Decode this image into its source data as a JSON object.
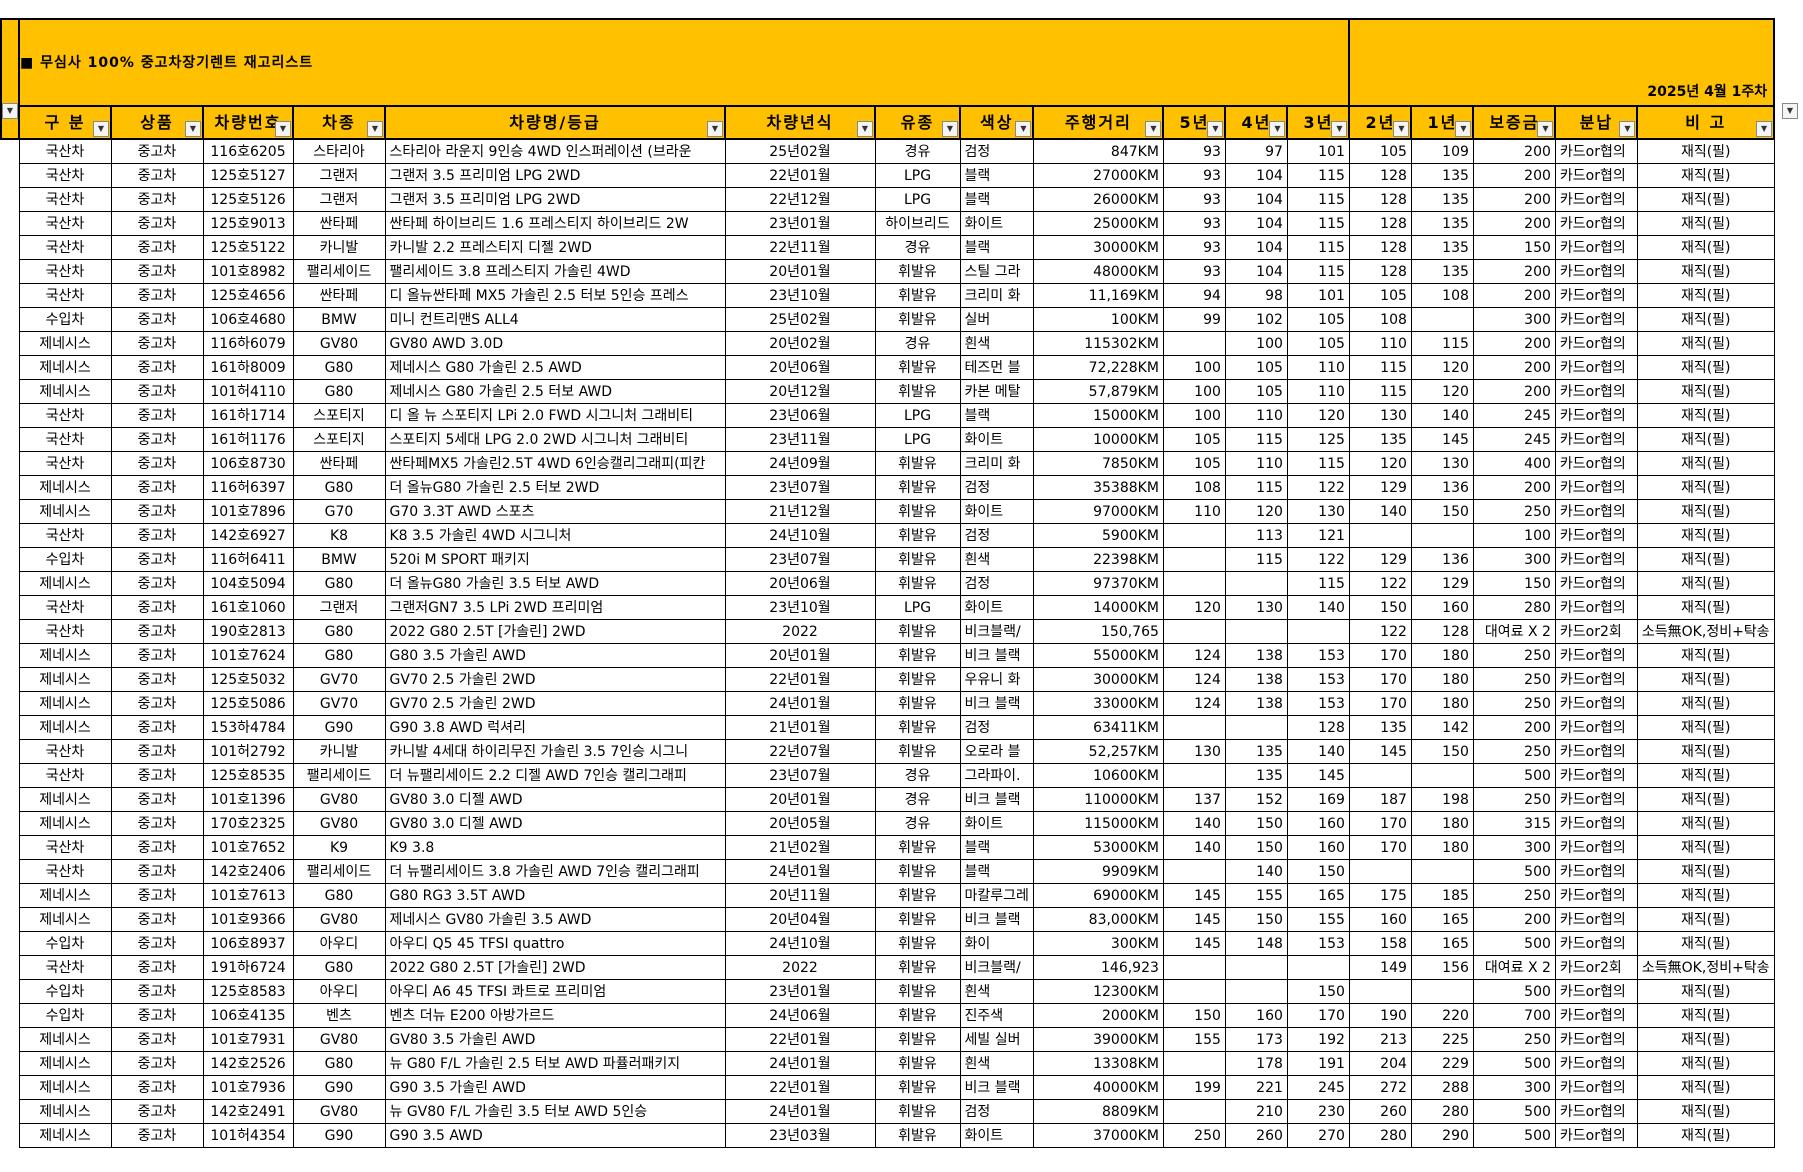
{
  "title": "■ 무심사 100% 중고차장기렌트 재고리스트",
  "date_label": "2025년 4월 1주차",
  "filter_icon": "dropdown-arrow",
  "columns": [
    "구 분",
    "상품",
    "차량번호",
    "차종",
    "차량명/등급",
    "차량년식",
    "유종",
    "색상",
    "주행거리",
    "5년",
    "4년",
    "3년",
    "2년",
    "1년",
    "보증금",
    "분납",
    "비 고"
  ],
  "rows": [
    [
      "국산차",
      "중고차",
      "116호6205",
      "스타리아",
      "스타리아 라운지 9인승 4WD 인스퍼레이션 (브라운",
      "25년02월",
      "경유",
      "검정",
      "847KM",
      "93",
      "97",
      "101",
      "105",
      "109",
      "200",
      "카드or협의",
      "재직(필)"
    ],
    [
      "국산차",
      "중고차",
      "125호5127",
      "그랜저",
      "그랜저 3.5 프리미엄 LPG 2WD",
      "22년01월",
      "LPG",
      "블랙",
      "27000KM",
      "93",
      "104",
      "115",
      "128",
      "135",
      "200",
      "카드or협의",
      "재직(필)"
    ],
    [
      "국산차",
      "중고차",
      "125호5126",
      "그랜저",
      "그랜저 3.5 프리미엄 LPG 2WD",
      "22년12월",
      "LPG",
      "블랙",
      "26000KM",
      "93",
      "104",
      "115",
      "128",
      "135",
      "200",
      "카드or협의",
      "재직(필)"
    ],
    [
      "국산차",
      "중고차",
      "125호9013",
      "싼타페",
      "싼타페 하이브리드 1.6 프레스티지 하이브리드 2W",
      "23년01월",
      "하이브리드",
      "화이트",
      "25000KM",
      "93",
      "104",
      "115",
      "128",
      "135",
      "200",
      "카드or협의",
      "재직(필)"
    ],
    [
      "국산차",
      "중고차",
      "125호5122",
      "카니발",
      "카니발 2.2 프레스티지 디젤 2WD",
      "22년11월",
      "경유",
      "블랙",
      "30000KM",
      "93",
      "104",
      "115",
      "128",
      "135",
      "150",
      "카드or협의",
      "재직(필)"
    ],
    [
      "국산차",
      "중고차",
      "101호8982",
      "팰리세이드",
      "팰리세이드 3.8 프레스티지 가솔린 4WD",
      "20년01월",
      "휘발유",
      "스틸 그라",
      "48000KM",
      "93",
      "104",
      "115",
      "128",
      "135",
      "200",
      "카드or협의",
      "재직(필)"
    ],
    [
      "국산차",
      "중고차",
      "125호4656",
      "싼타페",
      "디 올뉴싼타페 MX5 가솔린 2.5 터보 5인승 프레스",
      "23년10월",
      "휘발유",
      "크리미 화",
      "11,169KM",
      "94",
      "98",
      "101",
      "105",
      "108",
      "200",
      "카드or협의",
      "재직(필)"
    ],
    [
      "수입차",
      "중고차",
      "106호4680",
      "BMW",
      "미니 컨트리맨S ALL4",
      "25년02월",
      "휘발유",
      "실버",
      "100KM",
      "99",
      "102",
      "105",
      "108",
      "",
      "300",
      "카드or협의",
      "재직(필)"
    ],
    [
      "제네시스",
      "중고차",
      "116하6079",
      "GV80",
      "GV80 AWD 3.0D",
      "20년02월",
      "경유",
      "흰색",
      "115302KM",
      "",
      "100",
      "105",
      "110",
      "115",
      "200",
      "카드or협의",
      "재직(필)"
    ],
    [
      "제네시스",
      "중고차",
      "161하8009",
      "G80",
      "제네시스 G80 가솔린 2.5 AWD",
      "20년06월",
      "휘발유",
      "테즈먼 블",
      "72,228KM",
      "100",
      "105",
      "110",
      "115",
      "120",
      "200",
      "카드or협의",
      "재직(필)"
    ],
    [
      "제네시스",
      "중고차",
      "101허4110",
      "G80",
      "제네시스 G80 가솔린 2.5 터보 AWD",
      "20년12월",
      "휘발유",
      "카본 메탈",
      "57,879KM",
      "100",
      "105",
      "110",
      "115",
      "120",
      "200",
      "카드or협의",
      "재직(필)"
    ],
    [
      "국산차",
      "중고차",
      "161하1714",
      "스포티지",
      "디 올 뉴 스포티지 LPi 2.0 FWD 시그니처 그래비티",
      "23년06월",
      "LPG",
      "블랙",
      "15000KM",
      "100",
      "110",
      "120",
      "130",
      "140",
      "245",
      "카드or협의",
      "재직(필)"
    ],
    [
      "국산차",
      "중고차",
      "161허1176",
      "스포티지",
      "스포티지 5세대 LPG 2.0 2WD 시그니처 그래비티",
      "23년11월",
      "LPG",
      "화이트",
      "10000KM",
      "105",
      "115",
      "125",
      "135",
      "145",
      "245",
      "카드or협의",
      "재직(필)"
    ],
    [
      "국산차",
      "중고차",
      "106호8730",
      "싼타페",
      "싼타페MX5 가솔린2.5T 4WD 6인승캘리그래피(피칸",
      "24년09월",
      "휘발유",
      "크리미 화",
      "7850KM",
      "105",
      "110",
      "115",
      "120",
      "130",
      "400",
      "카드or협의",
      "재직(필)"
    ],
    [
      "제네시스",
      "중고차",
      "116허6397",
      "G80",
      "더 올뉴G80 가솔린 2.5 터보 2WD",
      "23년07월",
      "휘발유",
      "검정",
      "35388KM",
      "108",
      "115",
      "122",
      "129",
      "136",
      "200",
      "카드or협의",
      "재직(필)"
    ],
    [
      "제네시스",
      "중고차",
      "101호7896",
      "G70",
      "G70 3.3T AWD 스포츠",
      "21년12월",
      "휘발유",
      "화이트",
      "97000KM",
      "110",
      "120",
      "130",
      "140",
      "150",
      "250",
      "카드or협의",
      "재직(필)"
    ],
    [
      "국산차",
      "중고차",
      "142호6927",
      "K8",
      "K8 3.5 가솔린 4WD 시그니처",
      "24년10월",
      "휘발유",
      "검정",
      "5900KM",
      "",
      "113",
      "121",
      "",
      "",
      "100",
      "카드or협의",
      "재직(필)"
    ],
    [
      "수입차",
      "중고차",
      "116허6411",
      "BMW",
      "520i M SPORT 패키지",
      "23년07월",
      "휘발유",
      "흰색",
      "22398KM",
      "",
      "115",
      "122",
      "129",
      "136",
      "300",
      "카드or협의",
      "재직(필)"
    ],
    [
      "제네시스",
      "중고차",
      "104호5094",
      "G80",
      "더 올뉴G80 가솔린 3.5 터보 AWD",
      "20년06월",
      "휘발유",
      "검정",
      "97370KM",
      "",
      "",
      "115",
      "122",
      "129",
      "150",
      "카드or협의",
      "재직(필)"
    ],
    [
      "국산차",
      "중고차",
      "161호1060",
      "그랜저",
      "그랜저GN7 3.5 LPi 2WD 프리미엄",
      "23년10월",
      "LPG",
      "화이트",
      "14000KM",
      "120",
      "130",
      "140",
      "150",
      "160",
      "280",
      "카드or협의",
      "재직(필)"
    ],
    [
      "국산차",
      "중고차",
      "190호2813",
      "G80",
      "2022 G80 2.5T [가솔린] 2WD",
      "2022",
      "휘발유",
      "비크블랙/",
      "150,765",
      "",
      "",
      "",
      "122",
      "128",
      "대여료 X 2",
      "카드or2회",
      "소득無OK,정비+탁송"
    ],
    [
      "제네시스",
      "중고차",
      "101호7624",
      "G80",
      "G80 3.5 가솔린 AWD",
      "20년01월",
      "휘발유",
      "비크 블랙",
      "55000KM",
      "124",
      "138",
      "153",
      "170",
      "180",
      "250",
      "카드or협의",
      "재직(필)"
    ],
    [
      "제네시스",
      "중고차",
      "125호5032",
      "GV70",
      "GV70 2.5 가솔린 2WD",
      "22년01월",
      "휘발유",
      "우유니 화",
      "30000KM",
      "124",
      "138",
      "153",
      "170",
      "180",
      "250",
      "카드or협의",
      "재직(필)"
    ],
    [
      "제네시스",
      "중고차",
      "125호5086",
      "GV70",
      "GV70 2.5 가솔린 2WD",
      "24년01월",
      "휘발유",
      "비크 블랙",
      "33000KM",
      "124",
      "138",
      "153",
      "170",
      "180",
      "250",
      "카드or협의",
      "재직(필)"
    ],
    [
      "제네시스",
      "중고차",
      "153하4784",
      "G90",
      "G90 3.8 AWD 럭셔리",
      "21년01월",
      "휘발유",
      "검정",
      "63411KM",
      "",
      "",
      "128",
      "135",
      "142",
      "200",
      "카드or협의",
      "재직(필)"
    ],
    [
      "국산차",
      "중고차",
      "101허2792",
      "카니발",
      "카니발 4세대 하이리무진 가솔린 3.5 7인승 시그니",
      "22년07월",
      "휘발유",
      "오로라 블",
      "52,257KM",
      "130",
      "135",
      "140",
      "145",
      "150",
      "250",
      "카드or협의",
      "재직(필)"
    ],
    [
      "국산차",
      "중고차",
      "125호8535",
      "팰리세이드",
      "더 뉴팰리세이드 2.2 디젤 AWD 7인승 캘리그래피",
      "23년07월",
      "경유",
      "그라파이.",
      "10600KM",
      "",
      "135",
      "145",
      "",
      "",
      "500",
      "카드or협의",
      "재직(필)"
    ],
    [
      "제네시스",
      "중고차",
      "101호1396",
      "GV80",
      "GV80 3.0 디젤 AWD",
      "20년01월",
      "경유",
      "비크 블랙",
      "110000KM",
      "137",
      "152",
      "169",
      "187",
      "198",
      "250",
      "카드or협의",
      "재직(필)"
    ],
    [
      "제네시스",
      "중고차",
      "170호2325",
      "GV80",
      "GV80 3.0 디젤 AWD",
      "20년05월",
      "경유",
      "화이트",
      "115000KM",
      "140",
      "150",
      "160",
      "170",
      "180",
      "315",
      "카드or협의",
      "재직(필)"
    ],
    [
      "국산차",
      "중고차",
      "101호7652",
      "K9",
      "K9 3.8",
      "21년02월",
      "휘발유",
      "블랙",
      "53000KM",
      "140",
      "150",
      "160",
      "170",
      "180",
      "300",
      "카드or협의",
      "재직(필)"
    ],
    [
      "국산차",
      "중고차",
      "142호2406",
      "팰리세이드",
      "더 뉴팰리세이드 3.8 가솔린 AWD 7인승 캘리그래피",
      "24년01월",
      "휘발유",
      "블랙",
      "9909KM",
      "",
      "140",
      "150",
      "",
      "",
      "500",
      "카드or협의",
      "재직(필)"
    ],
    [
      "제네시스",
      "중고차",
      "101호7613",
      "G80",
      "G80 RG3 3.5T AWD",
      "20년11월",
      "휘발유",
      "마칼루그레",
      "69000KM",
      "145",
      "155",
      "165",
      "175",
      "185",
      "250",
      "카드or협의",
      "재직(필)"
    ],
    [
      "제네시스",
      "중고차",
      "101호9366",
      "GV80",
      "제네시스 GV80 가솔린 3.5 AWD",
      "20년04월",
      "휘발유",
      "비크 블랙",
      "83,000KM",
      "145",
      "150",
      "155",
      "160",
      "165",
      "200",
      "카드or협의",
      "재직(필)"
    ],
    [
      "수입차",
      "중고차",
      "106호8937",
      "아우디",
      "아우디 Q5 45 TFSI quattro",
      "24년10월",
      "휘발유",
      "화이",
      "300KM",
      "145",
      "148",
      "153",
      "158",
      "165",
      "500",
      "카드or협의",
      "재직(필)"
    ],
    [
      "국산차",
      "중고차",
      "191하6724",
      "G80",
      "2022 G80 2.5T [가솔린] 2WD",
      "2022",
      "휘발유",
      "비크블랙/",
      "146,923",
      "",
      "",
      "",
      "149",
      "156",
      "대여료 X 2",
      "카드or2회",
      "소득無OK,정비+탁송"
    ],
    [
      "수입차",
      "중고차",
      "125호8583",
      "아우디",
      "아우디 A6 45 TFSI 콰트로 프리미엄",
      "23년01월",
      "휘발유",
      "흰색",
      "12300KM",
      "",
      "",
      "150",
      "",
      "",
      "500",
      "카드or협의",
      "재직(필)"
    ],
    [
      "수입차",
      "중고차",
      "106호4135",
      "벤츠",
      "벤츠 더뉴 E200 아방가르드",
      "24년06월",
      "휘발유",
      "진주색",
      "2000KM",
      "150",
      "160",
      "170",
      "190",
      "220",
      "700",
      "카드or협의",
      "재직(필)"
    ],
    [
      "제네시스",
      "중고차",
      "101호7931",
      "GV80",
      "GV80 3.5 가솔린 AWD",
      "22년01월",
      "휘발유",
      "세빌 실버",
      "39000KM",
      "155",
      "173",
      "192",
      "213",
      "225",
      "250",
      "카드or협의",
      "재직(필)"
    ],
    [
      "제네시스",
      "중고차",
      "142호2526",
      "G80",
      "뉴 G80 F/L 가솔린 2.5 터보 AWD 파퓰러패키지",
      "24년01월",
      "휘발유",
      "흰색",
      "13308KM",
      "",
      "178",
      "191",
      "204",
      "229",
      "500",
      "카드or협의",
      "재직(필)"
    ],
    [
      "제네시스",
      "중고차",
      "101호7936",
      "G90",
      "G90 3.5 가솔린 AWD",
      "22년01월",
      "휘발유",
      "비크 블랙",
      "40000KM",
      "199",
      "221",
      "245",
      "272",
      "288",
      "300",
      "카드or협의",
      "재직(필)"
    ],
    [
      "제네시스",
      "중고차",
      "142호2491",
      "GV80",
      "뉴 GV80 F/L 가솔린 3.5 터보 AWD 5인승",
      "24년01월",
      "휘발유",
      "검정",
      "8809KM",
      "",
      "210",
      "230",
      "260",
      "280",
      "500",
      "카드or협의",
      "재직(필)"
    ],
    [
      "제네시스",
      "중고차",
      "101허4354",
      "G90",
      "G90 3.5 AWD",
      "23년03월",
      "휘발유",
      "화이트",
      "37000KM",
      "250",
      "260",
      "270",
      "280",
      "290",
      "500",
      "카드or협의",
      "재직(필)"
    ]
  ]
}
